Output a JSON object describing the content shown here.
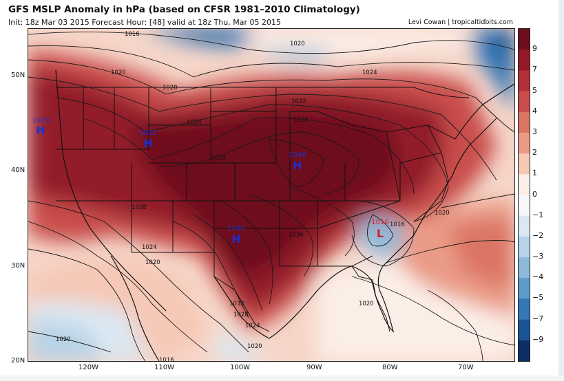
{
  "header": {
    "title": "GFS MSLP Anomaly in hPa (based on CFSR 1981–2010 Climatology)",
    "subtitle": "Init: 18z Mar 03 2015    Forecast Hour: [48]    valid at 18z Thu, Mar 05 2015",
    "credit": "Levi Cowan | tropicaltidbits.com"
  },
  "axes": {
    "lat_labels": [
      "50N",
      "40N",
      "30N",
      "20N"
    ],
    "lon_labels": [
      "120W",
      "110W",
      "100W",
      "90W",
      "80W",
      "70W"
    ]
  },
  "colorbar": {
    "ticks": [
      "9",
      "7",
      "5",
      "4",
      "3",
      "2",
      "1",
      "0",
      "−1",
      "−2",
      "−3",
      "−4",
      "−5",
      "−7",
      "−9"
    ],
    "colors": [
      "#6e0d1e",
      "#931a2a",
      "#b4303a",
      "#c94d4c",
      "#db7565",
      "#ea9b86",
      "#f6c8b6",
      "#fbeee7",
      "#f7f7f7",
      "#dbe8f2",
      "#b7d3e7",
      "#8dbadb",
      "#5d9bcb",
      "#3578b6",
      "#1c5596",
      "#0b2f66"
    ]
  },
  "isobars": [
    {
      "label": "1016"
    },
    {
      "label": "1020"
    },
    {
      "label": "1020"
    },
    {
      "label": "1024"
    },
    {
      "label": "1020"
    },
    {
      "label": "1024"
    },
    {
      "label": "1028"
    },
    {
      "label": "1032"
    },
    {
      "label": "1036"
    },
    {
      "label": "1028"
    },
    {
      "label": "1024"
    },
    {
      "label": "1020"
    },
    {
      "label": "1032"
    },
    {
      "label": "1028"
    },
    {
      "label": "1024"
    },
    {
      "label": "1020"
    },
    {
      "label": "1020"
    },
    {
      "label": "1016"
    },
    {
      "label": "1020"
    },
    {
      "label": "1016"
    },
    {
      "label": "1036"
    },
    {
      "label": "1020"
    }
  ],
  "pressure_centers": [
    {
      "type": "H",
      "value": "1028"
    },
    {
      "type": "H",
      "value": "1032"
    },
    {
      "type": "H",
      "value": "1040"
    },
    {
      "type": "H",
      "value": "1040"
    },
    {
      "type": "L",
      "value": "1016"
    }
  ]
}
